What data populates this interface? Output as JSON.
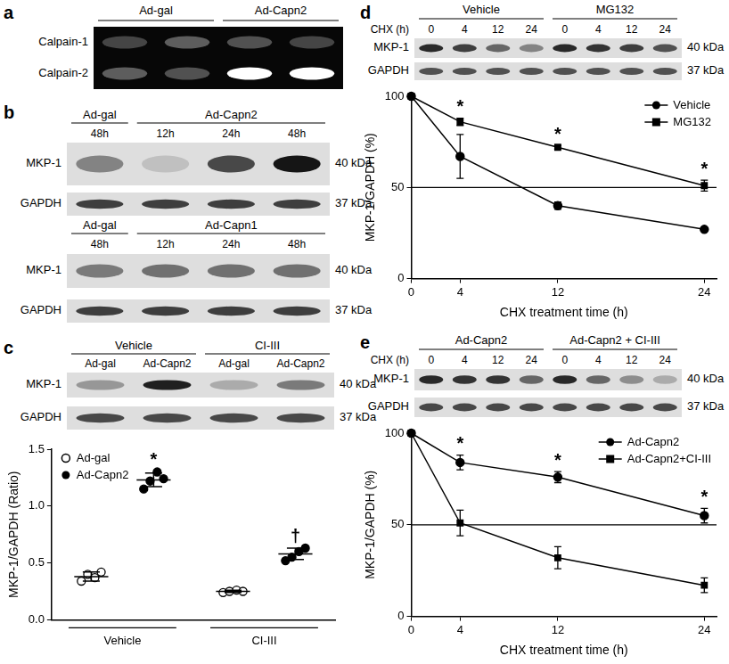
{
  "panel_labels": [
    "a",
    "b",
    "c",
    "d",
    "e"
  ],
  "blots": {
    "a": {
      "groups": [
        "Ad-gal",
        "Ad-Capn2"
      ],
      "rows": [
        "Calpain-1",
        "Calpain-2"
      ]
    },
    "b": [
      {
        "groups": [
          {
            "text": "Ad-gal",
            "lanes": [
              "48h"
            ]
          },
          {
            "text": "Ad-Capn2",
            "lanes": [
              "12h",
              "24h",
              "48h"
            ]
          }
        ],
        "rows": [
          {
            "name": "MKP-1",
            "size": "40 kDa"
          },
          {
            "name": "GAPDH",
            "size": "37 kDa"
          }
        ]
      },
      {
        "groups": [
          {
            "text": "Ad-gal",
            "lanes": [
              "48h"
            ]
          },
          {
            "text": "Ad-Capn1",
            "lanes": [
              "12h",
              "24h",
              "48h"
            ]
          }
        ],
        "rows": [
          {
            "name": "MKP-1",
            "size": "40 kDa"
          },
          {
            "name": "GAPDH",
            "size": "37 kDa"
          }
        ]
      }
    ],
    "c": {
      "groups": [
        {
          "text": "Vehicle",
          "lanes": [
            "Ad-gal",
            "Ad-Capn2"
          ]
        },
        {
          "text": "CI-III",
          "lanes": [
            "Ad-gal",
            "Ad-Capn2"
          ]
        }
      ],
      "rows": [
        {
          "name": "MKP-1",
          "size": "40 kDa"
        },
        {
          "name": "GAPDH",
          "size": "37 kDa"
        }
      ]
    },
    "d": {
      "lane_row_label": "CHX (h)",
      "groups": [
        {
          "text": "Vehicle",
          "lanes": [
            "0",
            "4",
            "12",
            "24"
          ]
        },
        {
          "text": "MG132",
          "lanes": [
            "0",
            "4",
            "12",
            "24"
          ]
        }
      ],
      "rows": [
        {
          "name": "MKP-1",
          "size": "40 kDa"
        },
        {
          "name": "GAPDH",
          "size": "37 kDa"
        }
      ]
    },
    "e": {
      "lane_row_label": "CHX (h)",
      "groups": [
        {
          "text": "Ad-Capn2",
          "lanes": [
            "0",
            "4",
            "12",
            "24"
          ]
        },
        {
          "text": "Ad-Capn2 + CI-III",
          "lanes": [
            "0",
            "4",
            "12",
            "24"
          ]
        }
      ],
      "rows": [
        {
          "name": "MKP-1",
          "size": "40 kDa"
        },
        {
          "name": "GAPDH",
          "size": "37 kDa"
        }
      ]
    }
  },
  "chart_data": [
    {
      "panel": "c",
      "type": "dot",
      "y_label": "MKP-1/GAPDH (Ratio)",
      "categories": [
        "Vehicle",
        "CI-III"
      ],
      "series": [
        {
          "name": "Ad-gal",
          "color": "#000000",
          "marker": "open_circle",
          "values": [
            [
              0.34,
              0.4,
              0.37,
              0.42
            ],
            [
              0.24,
              0.25,
              0.26,
              0.25
            ]
          ],
          "mean": [
            0.38,
            0.25
          ],
          "sd": [
            0.04,
            0.01
          ]
        },
        {
          "name": "Ad-Capn2",
          "color": "#000000",
          "marker": "filled_circle",
          "values": [
            [
              1.15,
              1.22,
              1.3,
              1.24
            ],
            [
              0.52,
              0.55,
              0.6,
              0.63
            ]
          ],
          "mean": [
            1.23,
            0.58
          ],
          "sd": [
            0.06,
            0.05
          ]
        }
      ],
      "ylim": [
        0,
        1.5
      ],
      "yticks": [
        {
          "value": 0,
          "label": "0.0"
        },
        {
          "value": 0.5,
          "label": "0.5"
        },
        {
          "value": 1,
          "label": "1.0"
        },
        {
          "value": 1.5,
          "label": "1.5"
        }
      ],
      "grid": false,
      "legend": "upper left",
      "annotations": [
        {
          "text": "*",
          "series": "Ad-Capn2",
          "category": "Vehicle"
        },
        {
          "text": "†",
          "series": "Ad-Capn2",
          "category": "CI-III"
        }
      ]
    },
    {
      "panel": "d",
      "type": "line",
      "x_label": "CHX treatment time (h)",
      "y_label": "MKP-1/GAPDH (%)",
      "x": [
        0,
        4,
        12,
        24
      ],
      "series": [
        {
          "name": "Vehicle",
          "color": "#000000",
          "marker": "circle",
          "values": [
            100,
            67,
            40,
            27
          ],
          "errors": [
            0,
            12,
            2,
            1
          ]
        },
        {
          "name": "MG132",
          "color": "#000000",
          "marker": "square",
          "values": [
            100,
            86,
            72,
            51
          ],
          "errors": [
            0,
            2,
            1,
            3
          ]
        }
      ],
      "xlim": [
        0,
        25
      ],
      "xticks": [
        0,
        4,
        12,
        24
      ],
      "ylim": [
        0,
        100
      ],
      "yticks": [
        0,
        50,
        100
      ],
      "reference_line": 50,
      "grid": false,
      "legend": "upper right",
      "annotations": [
        {
          "text": "*",
          "x": 4
        },
        {
          "text": "*",
          "x": 12
        },
        {
          "text": "*",
          "x": 24
        }
      ]
    },
    {
      "panel": "e",
      "type": "line",
      "x_label": "CHX treatment time (h)",
      "y_label": "MKP-1/GAPDH (%)",
      "x": [
        0,
        4,
        12,
        24
      ],
      "series": [
        {
          "name": "Ad-Capn2",
          "color": "#000000",
          "marker": "circle",
          "values": [
            100,
            84,
            76,
            55
          ],
          "errors": [
            0,
            4,
            3,
            4
          ]
        },
        {
          "name": "Ad-Capn2+CI-III",
          "color": "#000000",
          "marker": "square",
          "values": [
            100,
            51,
            32,
            17
          ],
          "errors": [
            0,
            7,
            6,
            4
          ]
        }
      ],
      "xlim": [
        0,
        25
      ],
      "xticks": [
        0,
        4,
        12,
        24
      ],
      "ylim": [
        0,
        100
      ],
      "yticks": [
        0,
        50,
        100
      ],
      "reference_line": 50,
      "grid": false,
      "legend": "upper right",
      "annotations": [
        {
          "text": "*",
          "x": 4
        },
        {
          "text": "*",
          "x": 12
        },
        {
          "text": "*",
          "x": 24
        }
      ]
    }
  ]
}
